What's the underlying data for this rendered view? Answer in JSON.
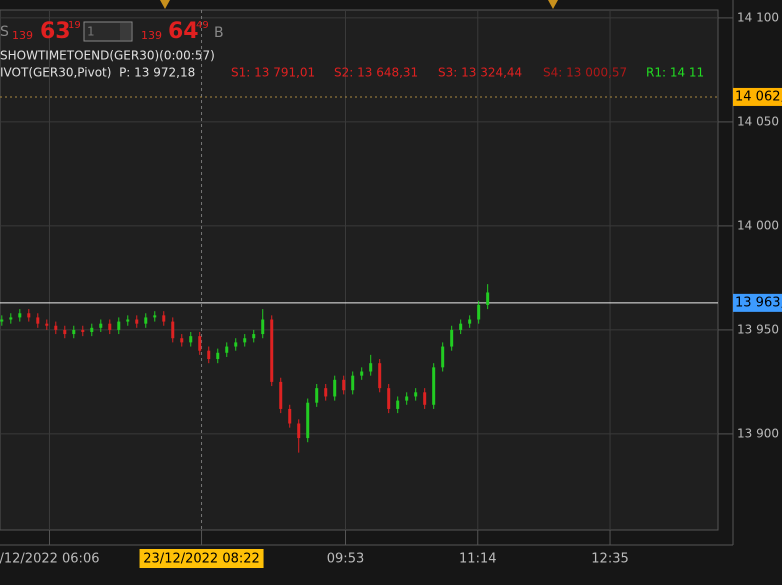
{
  "quote": {
    "prefix": "S",
    "bid_big": "139",
    "bid_main": "63",
    "bid_frac": "19",
    "qty": "1",
    "ask_big": "139",
    "ask_main": "64",
    "ask_frac": "49",
    "suffix": "B"
  },
  "indicators": {
    "timer": "SHOWTIMETOEND(GER30)(0:00:57)",
    "pivot": "IVOT(GER30,Pivot)  P: 13 972,18",
    "s1": "S1: 13 791,01",
    "s2": "S2: 13 648,31",
    "s3": "S3: 13 324,44",
    "s4": "S4: 13 000,57",
    "r1": "R1: 14 11"
  },
  "chart_data": {
    "type": "candlestick",
    "up_color": "#22cc22",
    "down_color": "#dd2222",
    "grid": true,
    "ylim": [
      13853.8,
      14103.8
    ],
    "yticks": [
      {
        "value": 13900,
        "label": "13 900"
      },
      {
        "value": 13950,
        "label": "13 950"
      },
      {
        "value": 14000,
        "label": "14 000"
      },
      {
        "value": 14050,
        "label": "14 050"
      },
      {
        "value": 14100,
        "label": "14 100"
      }
    ],
    "xlim": [
      -0.2,
      79.6
    ],
    "xticks": [
      {
        "value": 5.3,
        "label": "/12/2022 06:06"
      },
      {
        "value": 22.2,
        "label": "23/12/2022 08:22"
      },
      {
        "value": 38.2,
        "label": "09:53"
      },
      {
        "value": 52.9,
        "label": "11:14"
      },
      {
        "value": 67.6,
        "label": "12:35"
      }
    ],
    "highlight_xtick": 1,
    "price_tags": [
      {
        "value": 14062,
        "label": "14 062,",
        "color": "#ffb300"
      },
      {
        "value": 13963,
        "label": "13 963,",
        "color": "#3d9bff"
      }
    ],
    "open": [
      13954,
      13955,
      13956,
      13958,
      13956,
      13953,
      13952,
      13950,
      13948,
      13950,
      13949,
      13951,
      13953,
      13950,
      13954,
      13955,
      13953,
      13956,
      13957,
      13954,
      13946,
      13944,
      13947,
      13940,
      13936,
      13939,
      13942,
      13944,
      13946,
      13948,
      13955,
      13925,
      13912,
      13905,
      13898,
      13915,
      13922,
      13918,
      13926,
      13921,
      13928,
      13930,
      13934,
      13922,
      13912,
      13916,
      13918,
      13920,
      13914,
      13932,
      13942,
      13950,
      13953,
      13955,
      13962
    ],
    "high": [
      13957,
      13958,
      13960,
      13960,
      13958,
      13955,
      13954,
      13952,
      13952,
      13952,
      13953,
      13955,
      13955,
      13956,
      13957,
      13957,
      13958,
      13959,
      13959,
      13956,
      13948,
      13949,
      13949,
      13942,
      13941,
      13944,
      13946,
      13948,
      13950,
      13960,
      13957,
      13927,
      13914,
      13907,
      13917,
      13924,
      13924,
      13928,
      13928,
      13930,
      13932,
      13938,
      13936,
      13924,
      13918,
      13920,
      13922,
      13922,
      13934,
      13944,
      13952,
      13955,
      13957,
      13964,
      13972
    ],
    "low": [
      13952,
      13953,
      13954,
      13954,
      13951,
      13950,
      13948,
      13946,
      13946,
      13947,
      13947,
      13949,
      13948,
      13948,
      13952,
      13951,
      13951,
      13954,
      13952,
      13944,
      13942,
      13942,
      13938,
      13934,
      13934,
      13937,
      13940,
      13942,
      13944,
      13946,
      13923,
      13910,
      13903,
      13891,
      13896,
      13913,
      13916,
      13916,
      13919,
      13919,
      13926,
      13928,
      13920,
      13910,
      13910,
      13914,
      13916,
      13912,
      13912,
      13930,
      13940,
      13948,
      13951,
      13953,
      13960
    ],
    "close": [
      13955,
      13956,
      13958,
      13956,
      13953,
      13952,
      13950,
      13948,
      13950,
      13949,
      13951,
      13953,
      13950,
      13954,
      13955,
      13953,
      13956,
      13957,
      13954,
      13946,
      13944,
      13947,
      13940,
      13936,
      13939,
      13942,
      13944,
      13946,
      13948,
      13955,
      13925,
      13912,
      13905,
      13898,
      13915,
      13922,
      13918,
      13926,
      13921,
      13928,
      13930,
      13934,
      13922,
      13912,
      13916,
      13918,
      13920,
      13914,
      13932,
      13942,
      13950,
      13953,
      13955,
      13962,
      13968
    ]
  }
}
